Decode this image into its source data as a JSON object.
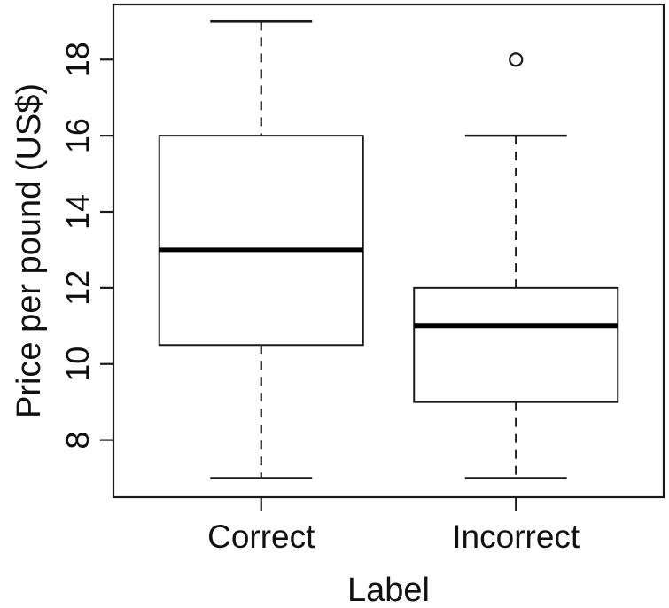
{
  "figure": {
    "background": "#ffffff",
    "ink_color": "#1a1a1a",
    "median_color": "#000000"
  },
  "chart_data": {
    "type": "boxplot",
    "title": "",
    "xlabel": "Label",
    "ylabel": "Price per pound (US$)",
    "categories": [
      "Correct",
      "Incorrect"
    ],
    "series": [
      {
        "name": "Correct",
        "whisker_low": 7,
        "q1": 10.5,
        "median": 13,
        "q3": 16,
        "whisker_high": 19,
        "outliers": []
      },
      {
        "name": "Incorrect",
        "whisker_low": 7,
        "q1": 9,
        "median": 11,
        "q3": 12,
        "whisker_high": 16,
        "outliers": [
          18
        ]
      }
    ],
    "yticks": [
      8,
      10,
      12,
      14,
      16,
      18
    ],
    "ylim": [
      6.5,
      19.45
    ],
    "grid": false,
    "legend": null
  }
}
